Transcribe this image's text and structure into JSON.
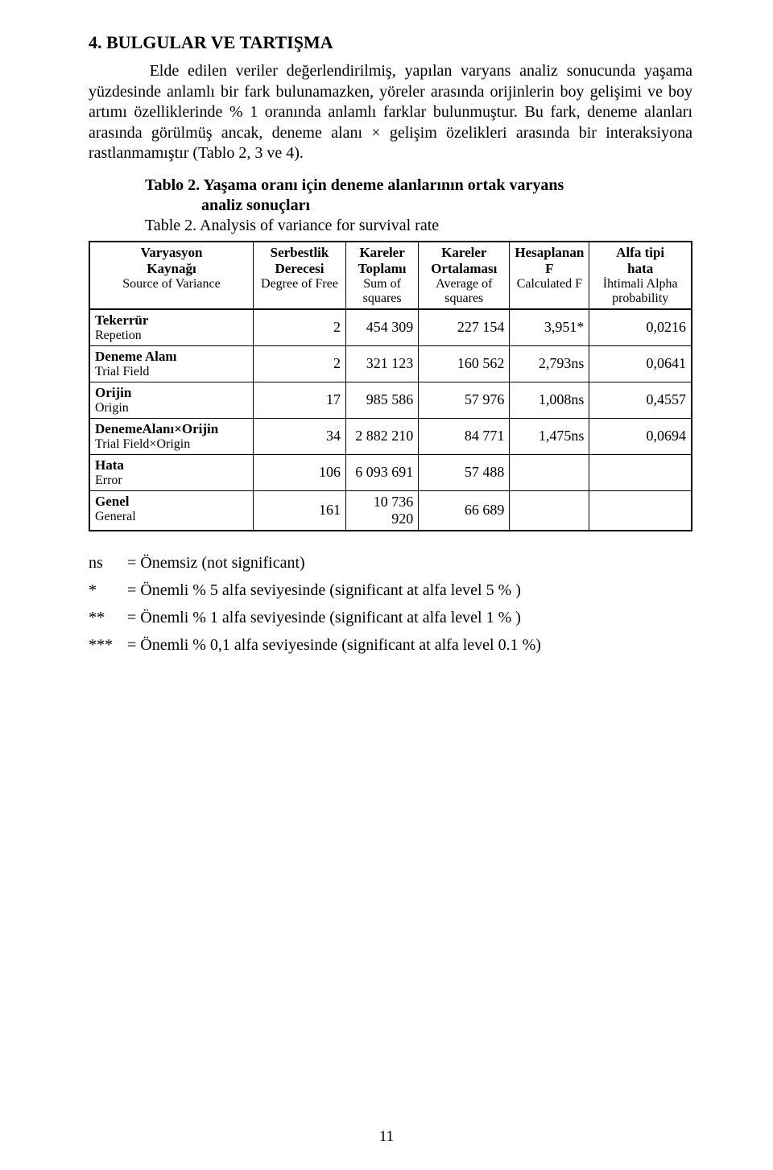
{
  "section_title": "4. BULGULAR VE TARTIŞMA",
  "paragraph": "Elde edilen veriler değerlendirilmiş, yapılan varyans analiz sonucunda yaşama yüzdesinde anlamlı bir fark bulunamazken, yöreler arasında orijinlerin boy gelişimi ve boy artımı özelliklerinde % 1 oranında anlamlı farklar bulunmuştur. Bu fark, deneme alanları arasında görülmüş ancak, deneme alanı × gelişim özelikleri arasında bir interaksiyona rastlanmamıştır (Tablo 2, 3 ve 4).",
  "table_title_tr_1": "Tablo 2. Yaşama oranı için deneme alanlarının ortak varyans",
  "table_title_tr_2": "analiz sonuçları",
  "table_title_en": "Table 2.  Analysis of variance for survival rate",
  "table": {
    "type": "table",
    "border_color": "#000000",
    "background_color": "#ffffff",
    "font_family": "Times New Roman",
    "header_fontsize": 17,
    "body_fontsize": 18,
    "columns": [
      {
        "h1": "Varyasyon",
        "h2": "Kaynağı",
        "h3": "Source of Variance",
        "align": "left"
      },
      {
        "h1": "Serbestlik Derecesi",
        "h2": "Degree of  Free",
        "h3": "",
        "align": "right"
      },
      {
        "h1": "Kareler",
        "h2": "Toplamı",
        "h3": "Sum of squares",
        "align": "right"
      },
      {
        "h1": "Kareler",
        "h2": "Ortalaması",
        "h3": "Average of squares",
        "align": "right"
      },
      {
        "h1": "Hesaplanan",
        "h2": "F",
        "h3": "Calculated F",
        "align": "right"
      },
      {
        "h1": "Alfa tipi",
        "h2": "hata",
        "h3": "İhtimali Alpha probability",
        "align": "right"
      }
    ],
    "rows": [
      {
        "src_bold": "Tekerrür",
        "src_sub": "Repetion",
        "df": "2",
        "ss": "454 309",
        "ms": "227 154",
        "f": "3,951*",
        "p": "0,0216"
      },
      {
        "src_bold": "Deneme Alanı",
        "src_sub": "Trial Field",
        "df": "2",
        "ss": "321 123",
        "ms": "160 562",
        "f": "2,793ns",
        "p": "0,0641"
      },
      {
        "src_bold": "Orijin",
        "src_sub": "Origin",
        "df": "17",
        "ss": "985 586",
        "ms": "57 976",
        "f": "1,008ns",
        "p": "0,4557"
      },
      {
        "src_bold": "DenemeAlanı×Orijin",
        "src_sub": "Trial Field×Origin",
        "df": "34",
        "ss": "2 882 210",
        "ms": "84 771",
        "f": "1,475ns",
        "p": "0,0694"
      },
      {
        "src_bold": "Hata",
        "src_sub": "Error",
        "df": "106",
        "ss": "6 093 691",
        "ms": "57 488",
        "f": "",
        "p": ""
      },
      {
        "src_bold": "Genel",
        "src_sub": "General",
        "df": "161",
        "ss": "10 736 920",
        "ms": "66 689",
        "f": "",
        "p": ""
      }
    ]
  },
  "legend": {
    "ns": {
      "key": "ns",
      "text": "= Önemsiz (not significant)"
    },
    "s1": {
      "key": "*",
      "text": "= Önemli % 5 alfa seviyesinde (significant at alfa level 5 % )"
    },
    "s2": {
      "key": "**",
      "text": "= Önemli % 1 alfa seviyesinde (significant at alfa level 1 % )"
    },
    "s3": {
      "key": "***",
      "text": "= Önemli % 0,1 alfa seviyesinde (significant at alfa level 0.1 %)"
    }
  },
  "page_number": "11"
}
